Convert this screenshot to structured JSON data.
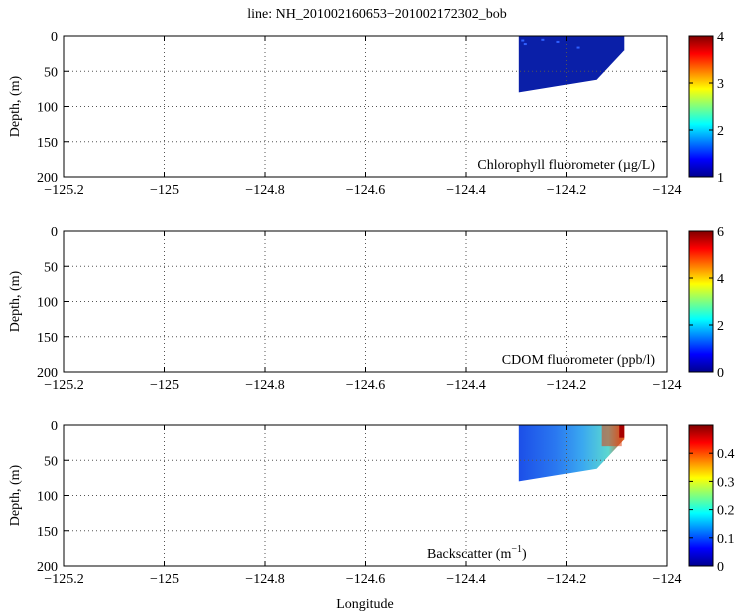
{
  "title": "line: NH_201002160653−201002172302_bob",
  "xlabel": "Longitude",
  "ylabel": "Depth, (m)",
  "chart_data": [
    {
      "type": "heatmap",
      "panel": "chlorophyll",
      "annotation": "Chlorophyll fluorometer (µg/L)",
      "xlim": [
        -125.2,
        -124
      ],
      "ylim": [
        0,
        200
      ],
      "y_inverted": true,
      "xticks": [
        "−125.2",
        "−125",
        "−124.8",
        "−124.6",
        "−124.4",
        "−124.2",
        "−124"
      ],
      "xtick_values": [
        -125.2,
        -125,
        -124.8,
        -124.6,
        -124.4,
        -124.2,
        -124
      ],
      "yticks": [
        "0",
        "50",
        "100",
        "150",
        "200"
      ],
      "ytick_values": [
        0,
        50,
        100,
        150,
        200
      ],
      "grid": true,
      "colorbar": {
        "range": [
          1,
          4
        ],
        "ticks": [
          "1",
          "2",
          "3",
          "4"
        ],
        "tick_values": [
          1,
          2,
          3,
          4
        ]
      },
      "data_region": [
        [
          -124.295,
          0
        ],
        [
          -124.085,
          0
        ],
        [
          -124.085,
          20
        ],
        [
          -124.14,
          62
        ],
        [
          -124.295,
          80
        ]
      ],
      "dominant_value": 1.1
    },
    {
      "type": "heatmap",
      "panel": "cdom",
      "annotation": "CDOM fluorometer (ppb/l)",
      "xlim": [
        -125.2,
        -124
      ],
      "ylim": [
        0,
        200
      ],
      "y_inverted": true,
      "xticks": [
        "−125.2",
        "−125",
        "−124.8",
        "−124.6",
        "−124.4",
        "−124.2",
        "−124"
      ],
      "xtick_values": [
        -125.2,
        -125,
        -124.8,
        -124.6,
        -124.4,
        -124.2,
        -124
      ],
      "yticks": [
        "0",
        "50",
        "100",
        "150",
        "200"
      ],
      "ytick_values": [
        0,
        50,
        100,
        150,
        200
      ],
      "grid": true,
      "colorbar": {
        "range": [
          0,
          6
        ],
        "ticks": [
          "0",
          "2",
          "4",
          "6"
        ],
        "tick_values": [
          0,
          2,
          4,
          6
        ]
      },
      "data_region": []
    },
    {
      "type": "heatmap",
      "panel": "backscatter",
      "annotation_base": "Backscatter (m",
      "annotation_sup": "−1",
      "annotation_end": ")",
      "xlim": [
        -125.2,
        -124
      ],
      "ylim": [
        0,
        200
      ],
      "y_inverted": true,
      "xticks": [
        "−125.2",
        "−125",
        "−124.8",
        "−124.6",
        "−124.4",
        "−124.2",
        "−124"
      ],
      "xtick_values": [
        -125.2,
        -125,
        -124.8,
        -124.6,
        -124.4,
        -124.2,
        -124
      ],
      "yticks": [
        "0",
        "50",
        "100",
        "150",
        "200"
      ],
      "ytick_values": [
        0,
        50,
        100,
        150,
        200
      ],
      "grid": true,
      "colorbar": {
        "range": [
          0,
          0.5
        ],
        "ticks": [
          "0",
          "0.1",
          "0.2",
          "0.3",
          "0.4"
        ],
        "tick_values": [
          0,
          0.1,
          0.2,
          0.3,
          0.4
        ]
      },
      "data_region": [
        [
          -124.295,
          0
        ],
        [
          -124.085,
          0
        ],
        [
          -124.085,
          20
        ],
        [
          -124.14,
          62
        ],
        [
          -124.295,
          80
        ]
      ],
      "dominant_value": 0.08,
      "high_value_zone": {
        "x": [
          -124.13,
          -124.09
        ],
        "depth": [
          0,
          30
        ],
        "value": 0.45
      }
    }
  ]
}
